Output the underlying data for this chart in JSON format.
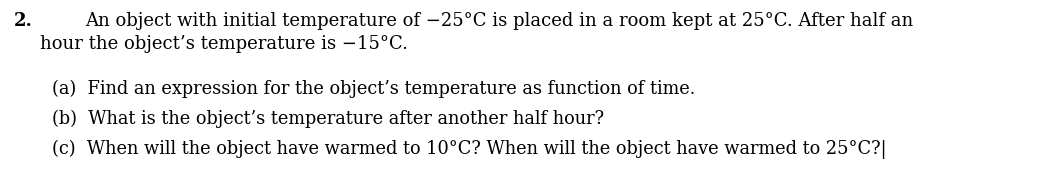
{
  "background_color": "#ffffff",
  "number": "2.",
  "main_text_line1": "An object with initial temperature of −25°C is placed in a room kept at 25°C. After half an",
  "main_text_line2": "hour the object’s temperature is −15°C.",
  "part_a": "(a)  Find an expression for the object’s temperature as function of time.",
  "part_b": "(b)  What is the object’s temperature after another half hour?",
  "part_c": "(c)  When will the object have warmed to 10°C? When will the object have warmed to 25°C?|",
  "font_size_main": 13.0,
  "font_size_parts": 12.8,
  "text_color": "#000000",
  "figwidth": 10.46,
  "figheight": 1.88,
  "dpi": 100
}
